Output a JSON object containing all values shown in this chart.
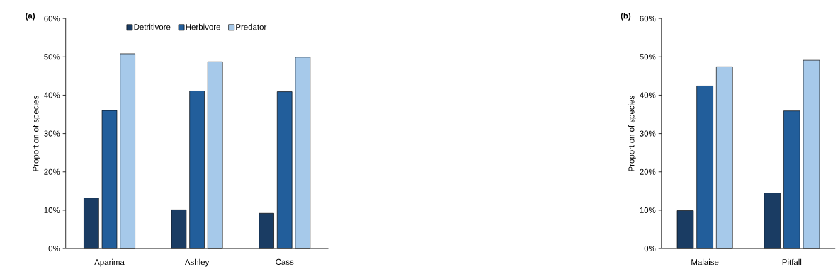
{
  "chart_data": [
    {
      "type": "bar",
      "title": "**(a)**",
      "ylabel": "Proportion of species",
      "categories": [
        "Aparima",
        "Ashley",
        "Cass"
      ],
      "series": [
        {
          "name": "Detritivore",
          "color": "#1a3c63",
          "values": [
            13.2,
            10.1,
            9.2
          ]
        },
        {
          "name": "Herbivore",
          "color": "#225e9b",
          "values": [
            36.0,
            41.1,
            40.9
          ]
        },
        {
          "name": "Predator",
          "color": "#a6c9ea",
          "values": [
            50.8,
            48.7,
            49.9
          ]
        }
      ],
      "ylim": [
        0,
        60
      ],
      "yticks": [
        {
          "value": 0,
          "label": "0%"
        },
        {
          "value": 10,
          "label": "10%"
        },
        {
          "value": 20,
          "label": "20%"
        },
        {
          "value": 30,
          "label": "30%"
        },
        {
          "value": 40,
          "label": "40%"
        },
        {
          "value": 50,
          "label": "50%"
        },
        {
          "value": 60,
          "label": "60%"
        }
      ],
      "legend": "top",
      "grid": false
    },
    {
      "type": "bar",
      "title": "**(b)**",
      "ylabel": "Proportion of species",
      "categories": [
        "Malaise",
        "Pitfall"
      ],
      "series": [
        {
          "color": "#1a3c63",
          "values": [
            9.9,
            14.5
          ]
        },
        {
          "color": "#225e9b",
          "values": [
            42.4,
            35.9
          ]
        },
        {
          "color": "#a6c9ea",
          "values": [
            47.4,
            49.1
          ]
        }
      ],
      "ylim": [
        0,
        60
      ],
      "yticks": [
        {
          "value": 0,
          "label": "0%"
        },
        {
          "value": 10,
          "label": "10%"
        },
        {
          "value": 20,
          "label": "20%"
        },
        {
          "value": 30,
          "label": "30%"
        },
        {
          "value": 40,
          "label": "40%"
        },
        {
          "value": 50,
          "label": "50%"
        },
        {
          "value": 60,
          "label": "60%"
        }
      ],
      "legend": false,
      "grid": false
    }
  ]
}
